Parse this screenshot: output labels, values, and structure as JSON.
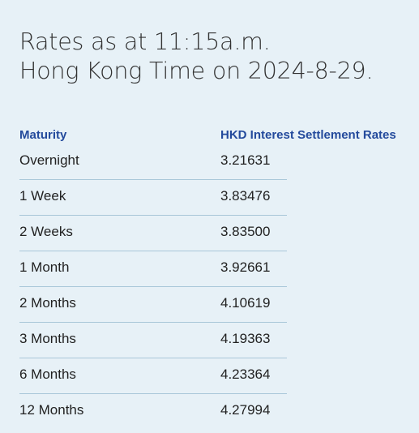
{
  "heading": {
    "line1": "Rates as at 11:15a.m.",
    "line2": "Hong Kong Time on 2024-8-29."
  },
  "table": {
    "headers": {
      "maturity": "Maturity",
      "rate": "HKD Interest Settlement Rates"
    },
    "rows": [
      {
        "maturity": "Overnight",
        "rate": "3.21631"
      },
      {
        "maturity": "1 Week",
        "rate": "3.83476"
      },
      {
        "maturity": "2 Weeks",
        "rate": "3.83500"
      },
      {
        "maturity": "1 Month",
        "rate": "3.92661"
      },
      {
        "maturity": "2 Months",
        "rate": "4.10619"
      },
      {
        "maturity": "3 Months",
        "rate": "4.19363"
      },
      {
        "maturity": "6 Months",
        "rate": "4.23364"
      },
      {
        "maturity": "12 Months",
        "rate": "4.27994"
      }
    ]
  },
  "colors": {
    "background": "#e7f1f7",
    "header_text": "#234a9c",
    "divider": "#a9c7d9"
  }
}
